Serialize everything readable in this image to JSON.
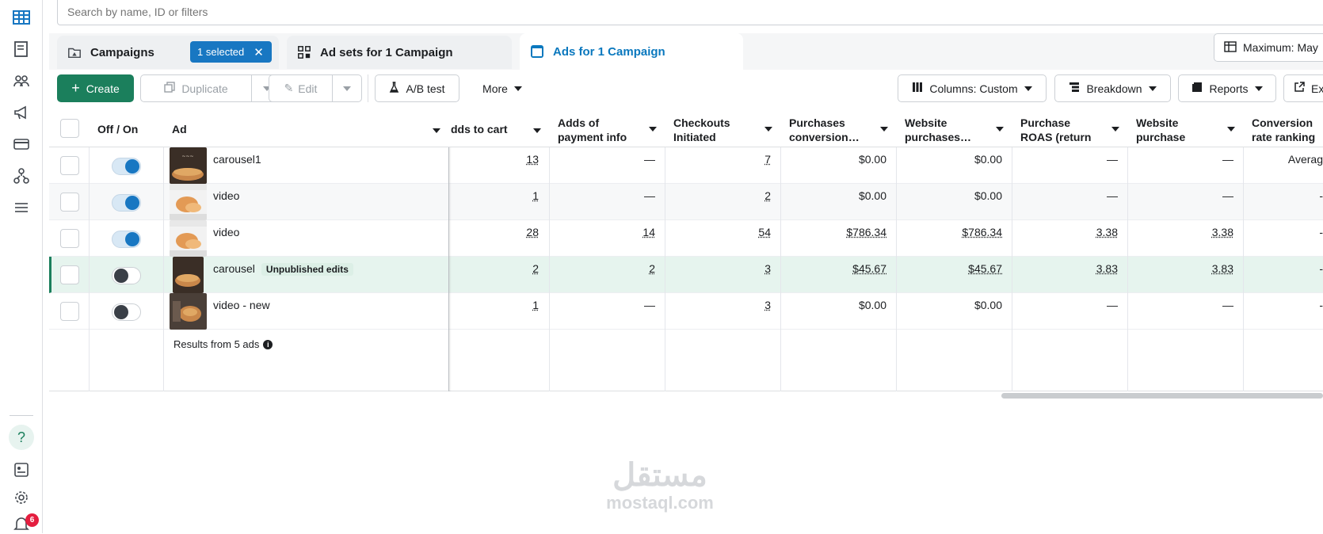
{
  "search": {
    "placeholder": "Search by name, ID or filters"
  },
  "tabs": {
    "campaigns": "Campaigns",
    "selected_pill": "1 selected",
    "adsets": "Ad sets for 1 Campaign",
    "ads": "Ads for 1 Campaign"
  },
  "maximum_btn": "Maximum: May",
  "toolbar": {
    "create": "Create",
    "duplicate": "Duplicate",
    "edit": "Edit",
    "ab_test": "A/B test",
    "more": "More",
    "columns": "Columns: Custom",
    "breakdown": "Breakdown",
    "reports": "Reports",
    "export": "Ex"
  },
  "columns": {
    "off_on": "Off / On",
    "ad": "Ad",
    "adds_to_cart": "dds to cart",
    "adds_payment": "Adds of payment info",
    "checkouts": "Checkouts Initiated",
    "purchases_conv": "Purchases conversion…",
    "website_purchases": "Website purchases…",
    "purchase_roas": "Purchase ROAS (return on ad…",
    "website_roas": "Website purchase ROA…",
    "conv_rank": "Conversion rate ranking"
  },
  "rows": [
    {
      "name": "carousel1",
      "on": true,
      "cart": "13",
      "payment": "—",
      "checkouts": "7",
      "purch": "$0.00",
      "web": "$0.00",
      "roas": "—",
      "wroas": "—",
      "rank": "Averag"
    },
    {
      "name": "video",
      "on": true,
      "cart": "1",
      "payment": "—",
      "checkouts": "2",
      "purch": "$0.00",
      "web": "$0.00",
      "roas": "—",
      "wroas": "—",
      "rank": "-"
    },
    {
      "name": "video",
      "on": true,
      "cart": "28",
      "payment": "14",
      "checkouts": "54",
      "purch": "$786.34",
      "web": "$786.34",
      "roas": "3.38",
      "wroas": "3.38",
      "rank": "-"
    },
    {
      "name": "carousel",
      "badge": "Unpublished edits",
      "on": false,
      "cart": "2",
      "payment": "2",
      "checkouts": "3",
      "purch": "$45.67",
      "web": "$45.67",
      "roas": "3.83",
      "wroas": "3.83",
      "rank": "-"
    },
    {
      "name": "video - new",
      "on": false,
      "cart": "1",
      "payment": "—",
      "checkouts": "3",
      "purch": "$0.00",
      "web": "$0.00",
      "roas": "—",
      "wroas": "—",
      "rank": "-"
    }
  ],
  "results_text": "Results from 5 ads",
  "notifications_count": "6",
  "help_label": "?",
  "watermark": {
    "arabic": "مستقل",
    "latin": "mostaql.com"
  },
  "colors": {
    "accent": "#1877c2",
    "create_green": "#1b7f5c",
    "highlight_row": "#e6f4ee",
    "badge_red": "#e41e3f"
  },
  "icons": [
    "table-icon",
    "book-icon",
    "people-icon",
    "megaphone-icon",
    "card-icon",
    "network-icon",
    "menu-icon",
    "help-icon",
    "news-icon",
    "gear-icon",
    "bell-icon"
  ]
}
